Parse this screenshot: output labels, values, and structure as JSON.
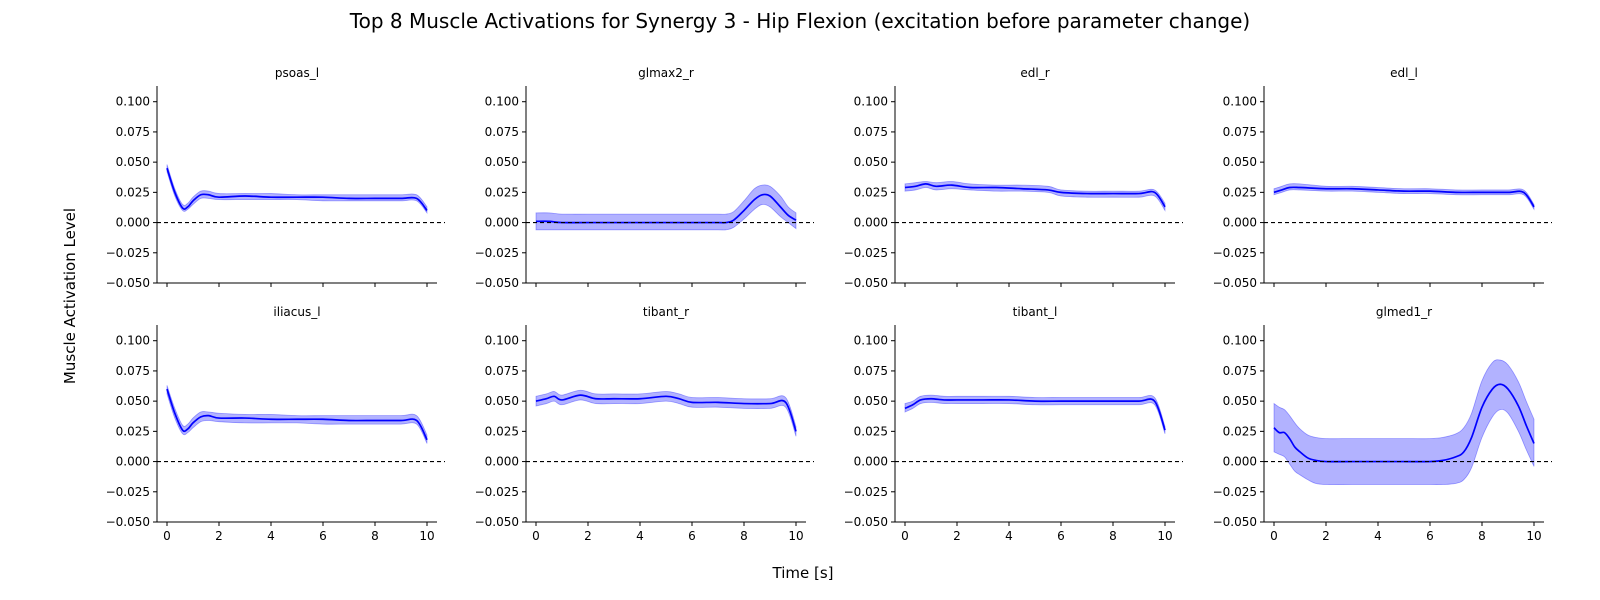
{
  "figure": {
    "title": "Top 8 Muscle Activations for Synergy 3 - Hip Flexion (excitation before parameter change)",
    "xlabel": "Time [s]",
    "ylabel": "Muscle Activation Level"
  },
  "colors": {
    "line": "#0000ff",
    "band": "#0000ff",
    "zero_line": "#000000"
  },
  "chart_data": [
    {
      "type": "line",
      "title": "psoas_l",
      "xlim": [
        0,
        10
      ],
      "ylim": [
        -0.05,
        0.113
      ],
      "xticks": [
        0,
        2,
        4,
        6,
        8,
        10
      ],
      "yticks": [
        -0.05,
        -0.025,
        0.0,
        0.025,
        0.05,
        0.075,
        0.1
      ],
      "show_xtick_labels": false,
      "reference_line_y": 0,
      "series": [
        {
          "x": [
            0,
            0.3,
            0.6,
            0.8,
            1.0,
            1.3,
            1.6,
            2.0,
            3.0,
            4.0,
            5.0,
            6.0,
            7.0,
            8.0,
            9.0,
            9.6,
            10.0
          ],
          "y": [
            0.045,
            0.025,
            0.012,
            0.013,
            0.018,
            0.023,
            0.023,
            0.021,
            0.022,
            0.021,
            0.021,
            0.021,
            0.02,
            0.02,
            0.02,
            0.02,
            0.01
          ],
          "lower": [
            0.042,
            0.022,
            0.01,
            0.011,
            0.015,
            0.02,
            0.02,
            0.019,
            0.019,
            0.019,
            0.019,
            0.018,
            0.018,
            0.018,
            0.018,
            0.018,
            0.008
          ],
          "upper": [
            0.048,
            0.028,
            0.015,
            0.016,
            0.021,
            0.026,
            0.026,
            0.024,
            0.024,
            0.024,
            0.023,
            0.023,
            0.023,
            0.023,
            0.023,
            0.023,
            0.013
          ]
        }
      ]
    },
    {
      "type": "line",
      "title": "glmax2_r",
      "xlim": [
        0,
        10
      ],
      "ylim": [
        -0.05,
        0.113
      ],
      "xticks": [
        0,
        2,
        4,
        6,
        8,
        10
      ],
      "yticks": [
        -0.05,
        -0.025,
        0.0,
        0.025,
        0.05,
        0.075,
        0.1
      ],
      "show_xtick_labels": false,
      "reference_line_y": 0,
      "series": [
        {
          "x": [
            0,
            0.5,
            1.0,
            2.0,
            4.0,
            6.0,
            7.0,
            7.3,
            7.6,
            8.0,
            8.4,
            8.7,
            9.0,
            9.4,
            9.7,
            10.0
          ],
          "y": [
            0.001,
            0.001,
            0.0,
            0.0,
            0.0,
            0.0,
            0.0,
            0.0,
            0.002,
            0.01,
            0.019,
            0.023,
            0.022,
            0.013,
            0.006,
            0.002
          ],
          "lower": [
            -0.006,
            -0.006,
            -0.006,
            -0.006,
            -0.006,
            -0.006,
            -0.006,
            -0.006,
            -0.004,
            0.003,
            0.011,
            0.015,
            0.013,
            0.005,
            0.0,
            -0.005
          ],
          "upper": [
            0.008,
            0.008,
            0.007,
            0.007,
            0.007,
            0.007,
            0.007,
            0.007,
            0.009,
            0.018,
            0.028,
            0.031,
            0.03,
            0.022,
            0.013,
            0.008
          ]
        }
      ]
    },
    {
      "type": "line",
      "title": "edl_r",
      "xlim": [
        0,
        10
      ],
      "ylim": [
        -0.05,
        0.113
      ],
      "xticks": [
        0,
        2,
        4,
        6,
        8,
        10
      ],
      "yticks": [
        -0.05,
        -0.025,
        0.0,
        0.025,
        0.05,
        0.075,
        0.1
      ],
      "show_xtick_labels": false,
      "reference_line_y": 0,
      "series": [
        {
          "x": [
            0,
            0.4,
            0.8,
            1.2,
            1.8,
            2.5,
            3.5,
            4.5,
            5.5,
            6.0,
            7.0,
            8.0,
            9.0,
            9.6,
            10.0
          ],
          "y": [
            0.029,
            0.03,
            0.032,
            0.03,
            0.031,
            0.029,
            0.029,
            0.028,
            0.027,
            0.025,
            0.024,
            0.024,
            0.024,
            0.025,
            0.013
          ],
          "lower": [
            0.026,
            0.027,
            0.029,
            0.027,
            0.028,
            0.027,
            0.026,
            0.026,
            0.025,
            0.022,
            0.021,
            0.021,
            0.021,
            0.022,
            0.01
          ],
          "upper": [
            0.032,
            0.033,
            0.034,
            0.033,
            0.034,
            0.032,
            0.031,
            0.031,
            0.03,
            0.027,
            0.026,
            0.026,
            0.026,
            0.027,
            0.016
          ]
        }
      ]
    },
    {
      "type": "line",
      "title": "edl_l",
      "xlim": [
        0,
        10
      ],
      "ylim": [
        -0.05,
        0.113
      ],
      "xticks": [
        0,
        2,
        4,
        6,
        8,
        10
      ],
      "yticks": [
        -0.05,
        -0.025,
        0.0,
        0.025,
        0.05,
        0.075,
        0.1
      ],
      "show_xtick_labels": false,
      "reference_line_y": 0,
      "series": [
        {
          "x": [
            0,
            0.3,
            0.6,
            1.0,
            2.0,
            3.0,
            4.0,
            5.0,
            6.0,
            7.0,
            8.0,
            9.0,
            9.6,
            10.0
          ],
          "y": [
            0.025,
            0.027,
            0.029,
            0.029,
            0.028,
            0.028,
            0.027,
            0.026,
            0.026,
            0.025,
            0.025,
            0.025,
            0.025,
            0.013
          ],
          "lower": [
            0.023,
            0.025,
            0.027,
            0.027,
            0.026,
            0.026,
            0.025,
            0.024,
            0.024,
            0.023,
            0.023,
            0.023,
            0.023,
            0.011
          ],
          "upper": [
            0.028,
            0.03,
            0.032,
            0.032,
            0.03,
            0.03,
            0.029,
            0.028,
            0.028,
            0.027,
            0.027,
            0.027,
            0.027,
            0.015
          ]
        }
      ]
    },
    {
      "type": "line",
      "title": "iliacus_l",
      "xlim": [
        0,
        10
      ],
      "ylim": [
        -0.05,
        0.113
      ],
      "xticks": [
        0,
        2,
        4,
        6,
        8,
        10
      ],
      "yticks": [
        -0.05,
        -0.025,
        0.0,
        0.025,
        0.05,
        0.075,
        0.1
      ],
      "show_xtick_labels": true,
      "reference_line_y": 0,
      "series": [
        {
          "x": [
            0,
            0.3,
            0.6,
            0.8,
            1.0,
            1.3,
            1.6,
            2.0,
            3.0,
            4.0,
            5.0,
            6.0,
            7.0,
            8.0,
            9.0,
            9.6,
            10.0
          ],
          "y": [
            0.06,
            0.04,
            0.026,
            0.027,
            0.032,
            0.037,
            0.038,
            0.036,
            0.036,
            0.035,
            0.035,
            0.035,
            0.034,
            0.034,
            0.034,
            0.034,
            0.018
          ],
          "lower": [
            0.056,
            0.036,
            0.023,
            0.024,
            0.028,
            0.033,
            0.034,
            0.033,
            0.032,
            0.032,
            0.032,
            0.031,
            0.031,
            0.031,
            0.031,
            0.031,
            0.015
          ],
          "upper": [
            0.063,
            0.044,
            0.03,
            0.031,
            0.036,
            0.041,
            0.041,
            0.04,
            0.039,
            0.039,
            0.038,
            0.038,
            0.038,
            0.038,
            0.038,
            0.038,
            0.022
          ]
        }
      ]
    },
    {
      "type": "line",
      "title": "tibant_r",
      "xlim": [
        0,
        10
      ],
      "ylim": [
        -0.05,
        0.113
      ],
      "xticks": [
        0,
        2,
        4,
        6,
        8,
        10
      ],
      "yticks": [
        -0.05,
        -0.025,
        0.0,
        0.025,
        0.05,
        0.075,
        0.1
      ],
      "show_xtick_labels": true,
      "reference_line_y": 0,
      "series": [
        {
          "x": [
            0,
            0.4,
            0.7,
            1.0,
            1.7,
            2.3,
            3.0,
            4.0,
            5.0,
            5.5,
            6.0,
            7.0,
            8.0,
            9.0,
            9.6,
            10.0
          ],
          "y": [
            0.05,
            0.052,
            0.054,
            0.051,
            0.055,
            0.052,
            0.052,
            0.052,
            0.054,
            0.052,
            0.049,
            0.049,
            0.048,
            0.048,
            0.049,
            0.025
          ],
          "lower": [
            0.046,
            0.048,
            0.05,
            0.047,
            0.051,
            0.048,
            0.048,
            0.048,
            0.05,
            0.048,
            0.045,
            0.045,
            0.044,
            0.044,
            0.045,
            0.021
          ],
          "upper": [
            0.054,
            0.056,
            0.058,
            0.055,
            0.059,
            0.056,
            0.056,
            0.056,
            0.058,
            0.056,
            0.053,
            0.053,
            0.052,
            0.052,
            0.053,
            0.029
          ]
        }
      ]
    },
    {
      "type": "line",
      "title": "tibant_l",
      "xlim": [
        0,
        10
      ],
      "ylim": [
        -0.05,
        0.113
      ],
      "xticks": [
        0,
        2,
        4,
        6,
        8,
        10
      ],
      "yticks": [
        -0.05,
        -0.025,
        0.0,
        0.025,
        0.05,
        0.075,
        0.1
      ],
      "show_xtick_labels": true,
      "reference_line_y": 0,
      "series": [
        {
          "x": [
            0,
            0.3,
            0.6,
            1.0,
            1.5,
            2.0,
            3.0,
            4.0,
            5.0,
            6.0,
            7.0,
            8.0,
            9.0,
            9.6,
            10.0
          ],
          "y": [
            0.044,
            0.047,
            0.051,
            0.052,
            0.051,
            0.051,
            0.051,
            0.051,
            0.05,
            0.05,
            0.05,
            0.05,
            0.05,
            0.05,
            0.026
          ],
          "lower": [
            0.041,
            0.044,
            0.048,
            0.049,
            0.048,
            0.048,
            0.048,
            0.048,
            0.047,
            0.047,
            0.047,
            0.047,
            0.047,
            0.047,
            0.023
          ],
          "upper": [
            0.048,
            0.05,
            0.054,
            0.055,
            0.054,
            0.054,
            0.054,
            0.054,
            0.053,
            0.053,
            0.053,
            0.053,
            0.053,
            0.053,
            0.029
          ]
        }
      ]
    },
    {
      "type": "line",
      "title": "glmed1_r",
      "xlim": [
        0,
        10
      ],
      "ylim": [
        -0.05,
        0.113
      ],
      "xticks": [
        0,
        2,
        4,
        6,
        8,
        10
      ],
      "yticks": [
        -0.05,
        -0.025,
        0.0,
        0.025,
        0.05,
        0.075,
        0.1
      ],
      "show_xtick_labels": true,
      "reference_line_y": 0,
      "series": [
        {
          "x": [
            0,
            0.2,
            0.4,
            0.6,
            0.8,
            1.0,
            1.3,
            1.6,
            2.0,
            3.0,
            4.0,
            5.0,
            6.0,
            6.5,
            7.0,
            7.3,
            7.6,
            8.0,
            8.4,
            8.7,
            9.0,
            9.4,
            9.7,
            10.0
          ],
          "y": [
            0.028,
            0.024,
            0.024,
            0.019,
            0.012,
            0.008,
            0.003,
            0.001,
            0.0,
            0.0,
            0.0,
            0.0,
            0.0,
            0.001,
            0.004,
            0.008,
            0.02,
            0.045,
            0.06,
            0.064,
            0.06,
            0.046,
            0.03,
            0.015
          ],
          "lower": [
            0.008,
            0.006,
            0.004,
            -0.002,
            -0.008,
            -0.011,
            -0.015,
            -0.018,
            -0.019,
            -0.019,
            -0.019,
            -0.019,
            -0.019,
            -0.019,
            -0.018,
            -0.015,
            -0.005,
            0.02,
            0.037,
            0.043,
            0.04,
            0.025,
            0.01,
            -0.004
          ],
          "upper": [
            0.048,
            0.045,
            0.043,
            0.038,
            0.032,
            0.027,
            0.022,
            0.02,
            0.019,
            0.019,
            0.019,
            0.019,
            0.019,
            0.02,
            0.023,
            0.028,
            0.04,
            0.067,
            0.082,
            0.084,
            0.08,
            0.066,
            0.05,
            0.035
          ]
        }
      ]
    }
  ]
}
